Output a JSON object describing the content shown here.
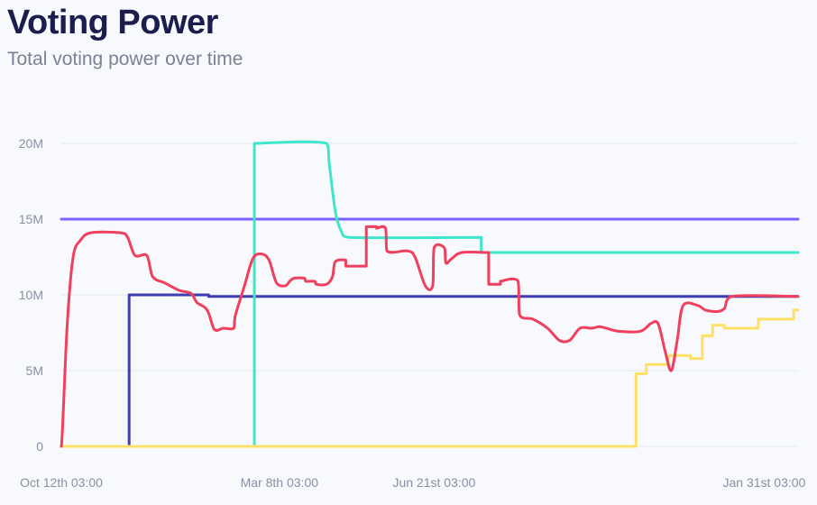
{
  "header": {
    "title": "Voting Power",
    "subtitle": "Total voting power over time"
  },
  "chart_data": {
    "type": "line",
    "title": "Voting Power",
    "subtitle": "Total voting power over time",
    "xlabel": "",
    "ylabel": "",
    "x_ticks": [
      "Oct 12th 03:00",
      "Mar 8th 03:00",
      "Jun 21st 03:00",
      "Jan 31st 03:00"
    ],
    "x_tick_positions": [
      0,
      148,
      253,
      477
    ],
    "y_ticks": [
      "0",
      "5M",
      "10M",
      "15M",
      "20M"
    ],
    "y_tick_values": [
      0,
      5,
      10,
      15,
      20
    ],
    "ylim": [
      0,
      20
    ],
    "xlim": [
      0,
      500
    ],
    "grid": true,
    "legend": "none",
    "series": [
      {
        "color": "#7b61ff",
        "step": false,
        "points": [
          [
            0,
            15
          ],
          [
            500,
            15
          ]
        ]
      },
      {
        "color": "#3f3db2",
        "step": true,
        "points": [
          [
            0,
            0
          ],
          [
            46,
            0
          ],
          [
            46,
            10
          ],
          [
            100,
            10
          ],
          [
            100,
            9.9
          ],
          [
            500,
            9.9
          ]
        ]
      },
      {
        "color": "#3fe6cc",
        "step": false,
        "points": [
          [
            0,
            0
          ],
          [
            131,
            0
          ],
          [
            131,
            20
          ],
          [
            180,
            20
          ],
          [
            182,
            18.5
          ],
          [
            186,
            15.5
          ],
          [
            190,
            14.2
          ],
          [
            195,
            13.8
          ],
          [
            285,
            13.8
          ],
          [
            285,
            12.8
          ],
          [
            500,
            12.8
          ]
        ]
      },
      {
        "color": "#ffe066",
        "step": true,
        "points": [
          [
            0,
            0
          ],
          [
            390,
            0
          ],
          [
            390,
            4.8
          ],
          [
            397,
            4.8
          ],
          [
            397,
            5.4
          ],
          [
            412,
            5.4
          ],
          [
            412,
            6.0
          ],
          [
            427,
            6.0
          ],
          [
            427,
            5.8
          ],
          [
            435,
            5.8
          ],
          [
            435,
            7.3
          ],
          [
            442,
            7.3
          ],
          [
            442,
            8.0
          ],
          [
            450,
            8.0
          ],
          [
            450,
            7.8
          ],
          [
            473,
            7.8
          ],
          [
            473,
            8.4
          ],
          [
            497,
            8.4
          ],
          [
            497,
            9.0
          ],
          [
            500,
            9.0
          ]
        ]
      },
      {
        "color": "#f0405e",
        "step": false,
        "points": [
          [
            0,
            0
          ],
          [
            4,
            8
          ],
          [
            8,
            12.5
          ],
          [
            13,
            13.6
          ],
          [
            20,
            14.1
          ],
          [
            40,
            14.1
          ],
          [
            45,
            13.8
          ],
          [
            50,
            12.6
          ],
          [
            58,
            12.6
          ],
          [
            62,
            11.2
          ],
          [
            70,
            10.8
          ],
          [
            80,
            10.3
          ],
          [
            88,
            10.1
          ],
          [
            92,
            9.5
          ],
          [
            97,
            9.2
          ],
          [
            100,
            8.8
          ],
          [
            104,
            7.7
          ],
          [
            110,
            7.8
          ],
          [
            117,
            7.8
          ],
          [
            118,
            8.6
          ],
          [
            124,
            10.5
          ],
          [
            130,
            12.4
          ],
          [
            136,
            12.7
          ],
          [
            141,
            12.3
          ],
          [
            146,
            10.8
          ],
          [
            152,
            10.6
          ],
          [
            155,
            10.9
          ],
          [
            158,
            11.1
          ],
          [
            165,
            11.1
          ],
          [
            166,
            10.9
          ],
          [
            172,
            10.9
          ],
          [
            173,
            10.7
          ],
          [
            180,
            10.7
          ],
          [
            184,
            11.2
          ],
          [
            186,
            12.2
          ],
          [
            193,
            12.3
          ],
          [
            193,
            11.9
          ],
          [
            207,
            11.9
          ],
          [
            207,
            14.5
          ],
          [
            214,
            14.5
          ],
          [
            214,
            14.4
          ],
          [
            220,
            14.4
          ],
          [
            221,
            12.9
          ],
          [
            235,
            12.9
          ],
          [
            240,
            12.5
          ],
          [
            247,
            10.6
          ],
          [
            252,
            10.6
          ],
          [
            253,
            13.1
          ],
          [
            260,
            13.1
          ],
          [
            261,
            12.1
          ],
          [
            265,
            12.4
          ],
          [
            272,
            12.8
          ],
          [
            290,
            12.8
          ],
          [
            290,
            10.7
          ],
          [
            298,
            10.7
          ],
          [
            298,
            10.9
          ],
          [
            310,
            10.9
          ],
          [
            311,
            8.7
          ],
          [
            320,
            8.4
          ],
          [
            330,
            7.8
          ],
          [
            338,
            7.0
          ],
          [
            345,
            7.0
          ],
          [
            352,
            7.8
          ],
          [
            360,
            7.8
          ],
          [
            365,
            7.9
          ],
          [
            370,
            7.8
          ],
          [
            378,
            7.6
          ],
          [
            393,
            7.6
          ],
          [
            400,
            8.1
          ],
          [
            405,
            8.1
          ],
          [
            410,
            6.2
          ],
          [
            414,
            5.0
          ],
          [
            418,
            7.0
          ],
          [
            422,
            9.3
          ],
          [
            432,
            9.3
          ],
          [
            437,
            9.0
          ],
          [
            445,
            8.9
          ],
          [
            450,
            9.1
          ],
          [
            455,
            9.9
          ],
          [
            500,
            9.9
          ]
        ]
      }
    ]
  }
}
